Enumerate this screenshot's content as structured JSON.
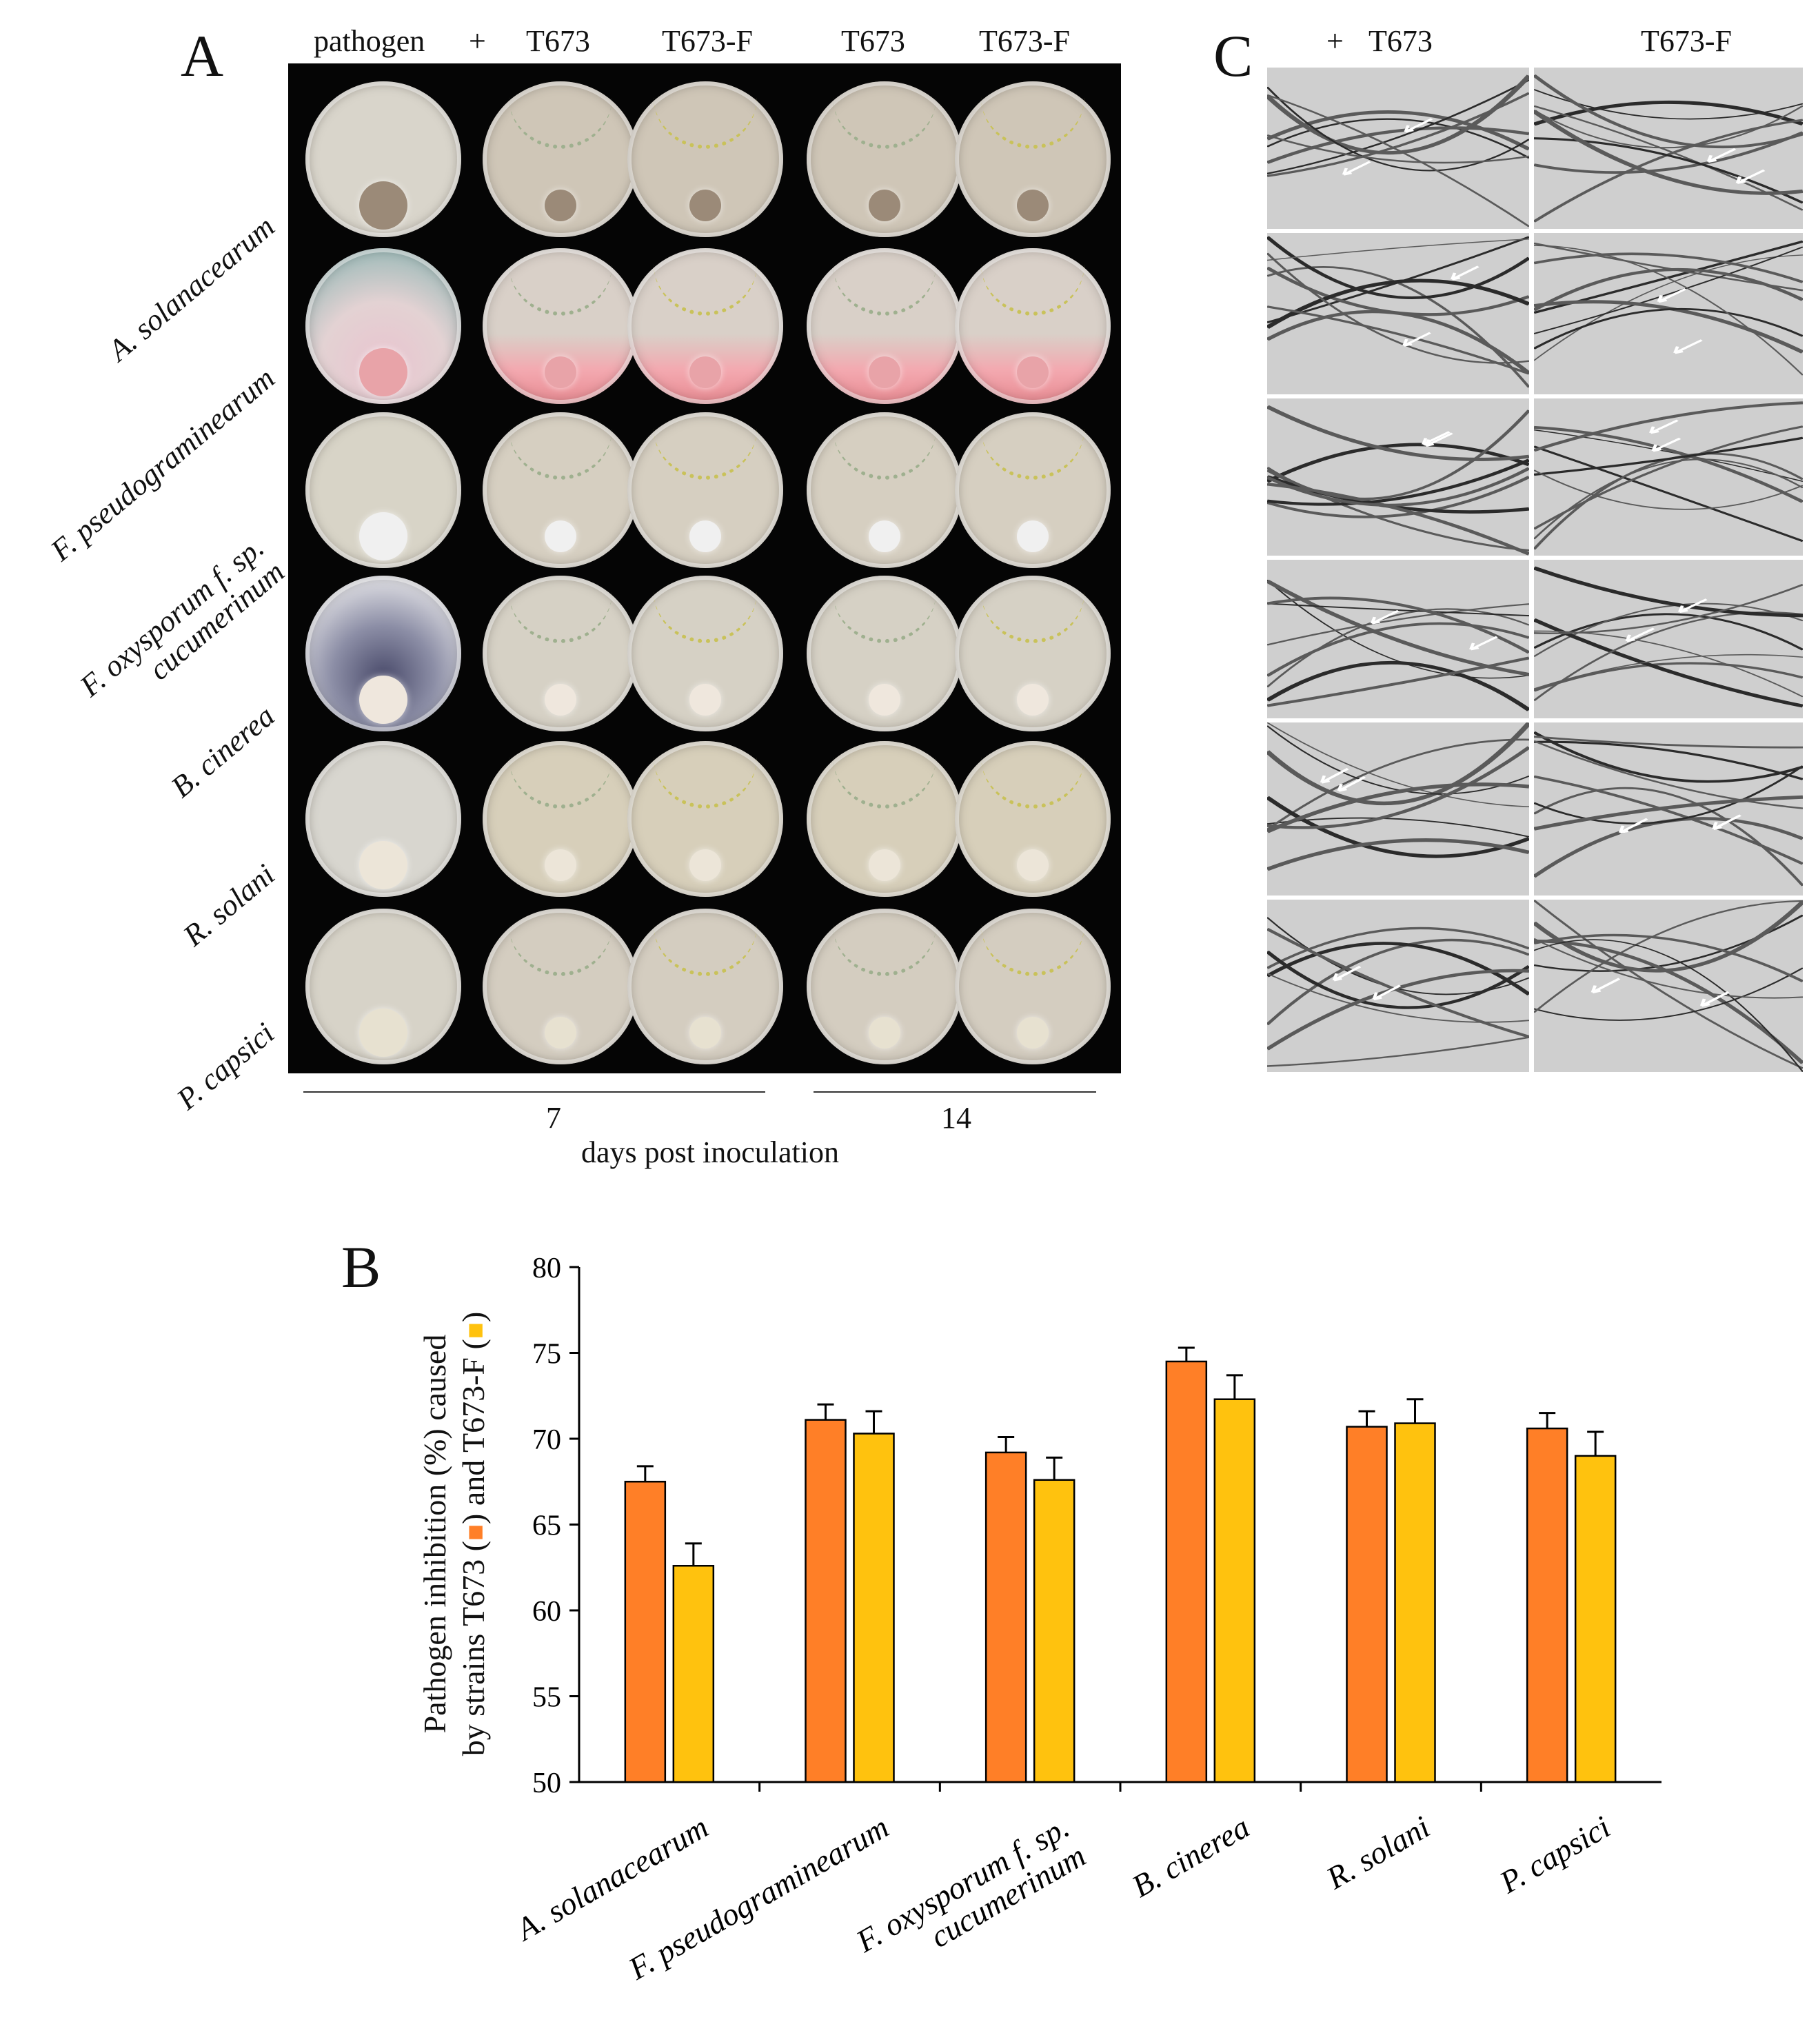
{
  "panel_a": {
    "letter": "A",
    "column_headers": [
      "pathogen",
      "+",
      "T673",
      "T673-F",
      "T673",
      "T673-F"
    ],
    "rows": [
      {
        "label_lines": [
          "A. solanacearum"
        ]
      },
      {
        "label_lines": [
          "F. pseudograminearum"
        ]
      },
      {
        "label_lines": [
          "F. oxysporum f. sp.",
          "cucumerinum"
        ]
      },
      {
        "label_lines": [
          "B. cinerea"
        ]
      },
      {
        "label_lines": [
          "R. solani"
        ]
      },
      {
        "label_lines": [
          "P. capsici"
        ]
      }
    ],
    "time_labels": [
      "7",
      "14"
    ],
    "time_axis_label": "days post inoculation"
  },
  "panel_c": {
    "letter": "C",
    "column_headers": [
      "+",
      "T673",
      "T673-F"
    ]
  },
  "panel_b": {
    "letter": "B",
    "ylabel_line1": "Pathogen inhibition (%) caused",
    "ylabel_line2a": "by strains T673 (",
    "ylabel_line2b": ") and T673-F (",
    "ylabel_line2c": ")"
  },
  "colors": {
    "t673": "#ff7f27",
    "t673f": "#ffc20e",
    "plate_black": "#050505"
  },
  "chart_data": {
    "type": "bar",
    "categories": [
      "A. solanacearum",
      "F. pseudograminearum",
      "F. oxysporum f. sp. cucumerinum",
      "B. cinerea",
      "R. solani",
      "P. capsici"
    ],
    "category_lines": [
      [
        "A. solanacearum"
      ],
      [
        "F. pseudograminearum"
      ],
      [
        "F. oxysporum f. sp.",
        "cucumerinum"
      ],
      [
        "B. cinerea"
      ],
      [
        "R. solani"
      ],
      [
        "P. capsici"
      ]
    ],
    "series": [
      {
        "values": [
          67.5,
          71.1,
          69.2,
          74.5,
          70.7,
          70.6
        ],
        "errors": [
          0.9,
          0.9,
          0.9,
          0.8,
          0.9,
          0.9
        ],
        "color": "#ff7f27"
      },
      {
        "values": [
          62.6,
          70.3,
          67.6,
          72.3,
          70.9,
          69.0
        ],
        "errors": [
          1.3,
          1.3,
          1.3,
          1.4,
          1.4,
          1.4
        ],
        "color": "#ffc20e"
      }
    ],
    "ylim": [
      50,
      80
    ],
    "yticks": [
      50,
      55,
      60,
      65,
      70,
      75,
      80
    ],
    "grid": false,
    "legend": "none"
  }
}
